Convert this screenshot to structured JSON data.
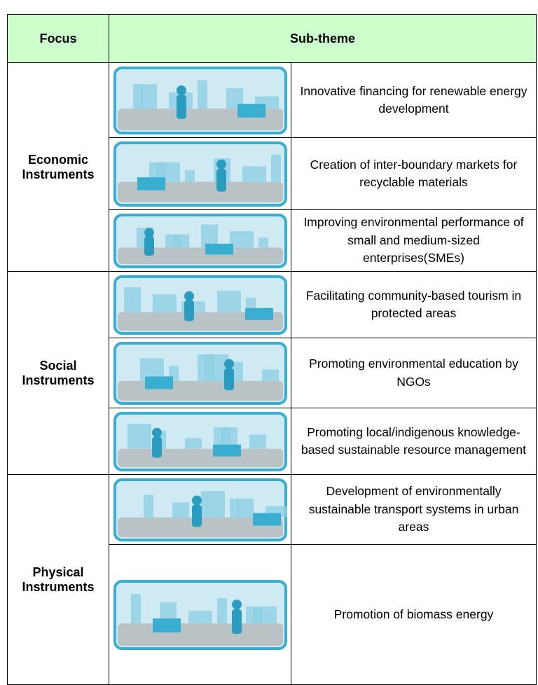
{
  "header": {
    "focus": "Focus",
    "sub_theme": "Sub-theme"
  },
  "groups": [
    {
      "focus": "Economic Instruments",
      "items": [
        "Innovative financing for renewable energy development",
        "Creation of inter-boundary markets for recyclable materials",
        "Improving environmental performance of small and medium-sized enterprises(SMEs)"
      ]
    },
    {
      "focus": "Social Instruments",
      "items": [
        "Facilitating community-based tourism in protected areas",
        "Promoting environmental education by NGOs",
        "Promoting local/indigenous knowledge-based sustainable resource management"
      ]
    },
    {
      "focus": "Physical Instruments",
      "items": [
        "Development of environmentally sustainable transport systems in urban areas",
        "Promotion of biomass energy"
      ]
    }
  ]
}
